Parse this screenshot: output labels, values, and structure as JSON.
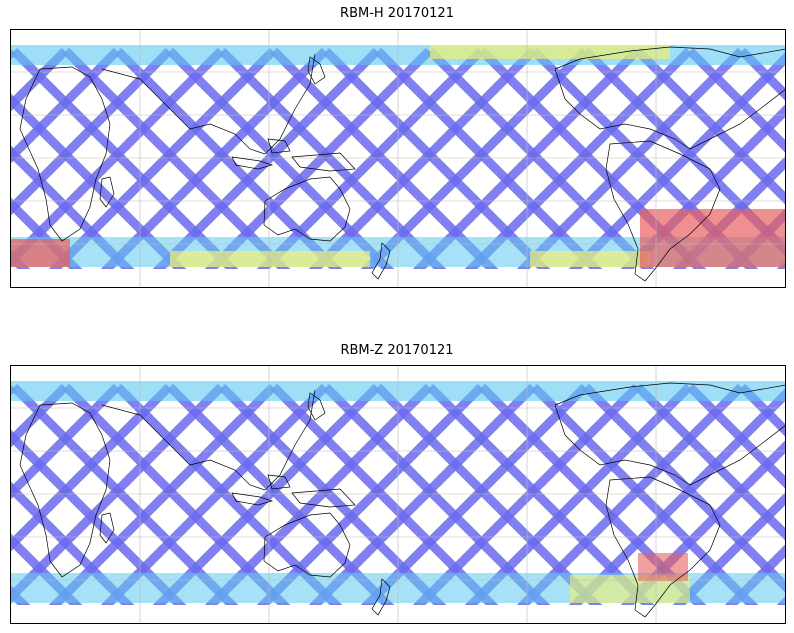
{
  "figure": {
    "panels": [
      {
        "title": "RBM-H 20170121",
        "grid": true,
        "colormap": "jet",
        "coastlines": true,
        "projection": "cylindrical"
      },
      {
        "title": "RBM-Z 20170121",
        "grid": true,
        "colormap": "jet",
        "coastlines": true,
        "projection": "cylindrical"
      }
    ],
    "colors": {
      "low": "#6a6af0",
      "mid": "#5ec8f0",
      "high_mid": "#f0f070",
      "high": "#e86060"
    }
  }
}
